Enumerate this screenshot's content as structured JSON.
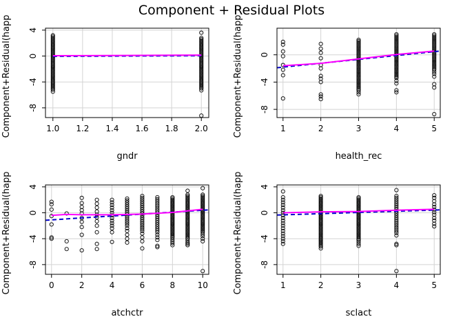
{
  "title": "Component + Residual Plots",
  "colors": {
    "points": "#000000",
    "linear_fit": "#0000cd",
    "smooth_fit": "#ff00ff",
    "grid": "#d3d3d3"
  },
  "chart_data": [
    {
      "type": "scatter",
      "xlabel": "gndr",
      "ylabel": "Component+Residual(happ",
      "xlim": [
        0.95,
        2.05
      ],
      "ylim": [
        -9.5,
        4.3
      ],
      "xticks": [
        1.0,
        1.2,
        1.4,
        1.6,
        1.8,
        2.0
      ],
      "xtick_labels": [
        "1.0",
        "1.2",
        "1.4",
        "1.6",
        "1.8",
        "2.0"
      ],
      "yticks": [
        -8,
        -4,
        0,
        4
      ],
      "ytick_labels": [
        "-8",
        "-4",
        "0",
        "4"
      ],
      "grid": true,
      "points_by_x": [
        {
          "x": 1.0,
          "y": [
            3.2,
            3.0,
            2.8,
            2.6,
            2.4,
            2.2,
            2.0,
            1.8,
            1.6,
            1.4,
            1.2,
            1.0,
            0.8,
            0.6,
            0.4,
            0.2,
            0.0,
            -0.2,
            -0.4,
            -0.6,
            -0.8,
            -1.0,
            -1.2,
            -1.4,
            -1.6,
            -1.8,
            -2.0,
            -2.2,
            -2.4,
            -2.6,
            -2.8,
            -3.0,
            -3.2,
            -3.4,
            -3.6,
            -3.8,
            -4.0,
            -4.2,
            -4.4,
            -4.6,
            -4.8,
            -5.0,
            -5.2,
            -5.5
          ]
        },
        {
          "x": 2.0,
          "y": [
            3.6,
            2.8,
            2.6,
            2.4,
            2.2,
            2.0,
            1.8,
            1.6,
            1.4,
            1.2,
            1.0,
            0.8,
            0.6,
            0.4,
            0.2,
            0.0,
            -0.2,
            -0.4,
            -0.6,
            -0.8,
            -1.0,
            -1.2,
            -1.4,
            -1.6,
            -1.8,
            -2.0,
            -2.2,
            -2.4,
            -2.6,
            -2.8,
            -3.0,
            -3.2,
            -3.4,
            -3.6,
            -3.8,
            -4.0,
            -4.2,
            -4.4,
            -4.6,
            -4.8,
            -5.0,
            -5.3,
            -9.2
          ]
        }
      ],
      "linear_fit": [
        [
          1.0,
          -0.05
        ],
        [
          2.0,
          0.05
        ]
      ],
      "smooth_fit": [
        [
          1.0,
          0.05
        ],
        [
          1.5,
          0.1
        ],
        [
          2.0,
          0.15
        ]
      ]
    },
    {
      "type": "scatter",
      "xlabel": "health_rec",
      "ylabel": "Component+Residual(happ",
      "xlim": [
        0.84,
        5.16
      ],
      "ylim": [
        -9.2,
        3.9
      ],
      "xticks": [
        1,
        2,
        3,
        4,
        5
      ],
      "xtick_labels": [
        "1",
        "2",
        "3",
        "4",
        "5"
      ],
      "yticks": [
        -8,
        -4,
        0
      ],
      "ytick_labels": [
        "-8",
        "-4",
        "0"
      ],
      "grid": true,
      "points_by_x": [
        {
          "x": 1,
          "y": [
            1.9,
            1.5,
            0.5,
            -0.2,
            -1.5,
            -2.2,
            -3.0,
            -6.4
          ]
        },
        {
          "x": 2,
          "y": [
            1.6,
            0.9,
            0.3,
            -0.5,
            -1.5,
            -2.0,
            -3.1,
            -3.5,
            -4.0,
            -5.8,
            -6.1,
            -6.5
          ]
        },
        {
          "x": 3,
          "y": [
            2.2,
            2.0,
            1.8,
            1.6,
            1.4,
            1.2,
            1.0,
            0.8,
            0.6,
            0.4,
            0.2,
            0.0,
            -0.2,
            -0.4,
            -0.6,
            -0.8,
            -1.0,
            -1.2,
            -1.4,
            -1.6,
            -1.8,
            -2.0,
            -2.2,
            -2.4,
            -2.6,
            -2.8,
            -3.0,
            -3.2,
            -3.4,
            -3.6,
            -3.8,
            -4.0,
            -4.2,
            -4.4,
            -4.6,
            -4.8,
            -5.0,
            -5.2,
            -5.5,
            -5.8
          ]
        },
        {
          "x": 4,
          "y": [
            3.0,
            2.8,
            2.6,
            2.4,
            2.2,
            2.0,
            1.8,
            1.6,
            1.4,
            1.2,
            1.0,
            0.8,
            0.6,
            0.4,
            0.2,
            0.0,
            -0.2,
            -0.4,
            -0.6,
            -0.8,
            -1.0,
            -1.2,
            -1.4,
            -1.6,
            -1.8,
            -2.0,
            -2.2,
            -2.4,
            -2.6,
            -2.8,
            -3.0,
            -3.2,
            -3.4,
            -3.8,
            -4.2,
            -5.2,
            -5.5
          ]
        },
        {
          "x": 5,
          "y": [
            3.0,
            2.8,
            2.6,
            2.4,
            2.2,
            2.0,
            1.8,
            1.6,
            1.4,
            1.2,
            1.0,
            0.8,
            0.6,
            0.4,
            0.2,
            0.0,
            -0.2,
            -0.4,
            -0.6,
            -0.8,
            -1.0,
            -1.2,
            -1.4,
            -1.6,
            -1.8,
            -2.0,
            -2.2,
            -2.5,
            -2.8,
            -3.2,
            -4.3,
            -4.8,
            -8.7
          ]
        }
      ],
      "linear_fit": [
        [
          0.84,
          -1.9
        ],
        [
          5.16,
          0.55
        ]
      ],
      "smooth_fit": [
        [
          1.0,
          -1.6
        ],
        [
          2.0,
          -1.25
        ],
        [
          3.0,
          -0.6
        ],
        [
          4.0,
          0.05
        ],
        [
          5.0,
          0.55
        ]
      ]
    },
    {
      "type": "scatter",
      "xlabel": "atchctr",
      "ylabel": "Component+Residual(happ",
      "xlim": [
        -0.4,
        10.4
      ],
      "ylim": [
        -9.5,
        4.3
      ],
      "xticks": [
        0,
        2,
        4,
        6,
        8,
        10
      ],
      "xtick_labels": [
        "0",
        "2",
        "4",
        "6",
        "8",
        "10"
      ],
      "yticks": [
        -8,
        -4,
        0,
        4
      ],
      "ytick_labels": [
        "-8",
        "-4",
        "0",
        "4"
      ],
      "grid": true,
      "points_by_x": [
        {
          "x": 0,
          "y": [
            1.7,
            1.3,
            0.5,
            -0.5,
            -1.8,
            -3.8,
            -4.0
          ]
        },
        {
          "x": 1,
          "y": [
            -0.1,
            -4.4,
            -5.6
          ]
        },
        {
          "x": 2,
          "y": [
            2.3,
            1.5,
            0.9,
            0.4,
            -0.1,
            -0.8,
            -1.4,
            -2.2,
            -3.4,
            -5.8
          ]
        },
        {
          "x": 3,
          "y": [
            2.0,
            1.4,
            0.8,
            0.2,
            -0.3,
            -0.7,
            -1.3,
            -2.0,
            -3.0,
            -4.8,
            -5.6
          ]
        },
        {
          "x": 4,
          "y": [
            2.0,
            1.6,
            1.2,
            0.8,
            0.4,
            0.0,
            -0.4,
            -0.8,
            -1.2,
            -1.6,
            -2.0,
            -2.4,
            -3.0,
            -4.5
          ]
        },
        {
          "x": 5,
          "y": [
            2.2,
            1.9,
            1.6,
            1.3,
            1.0,
            0.7,
            0.4,
            0.1,
            -0.2,
            -0.5,
            -0.8,
            -1.1,
            -1.4,
            -1.7,
            -2.0,
            -2.4,
            -2.8,
            -3.4,
            -4.0,
            -4.6
          ]
        },
        {
          "x": 6,
          "y": [
            2.6,
            2.3,
            2.0,
            1.7,
            1.4,
            1.1,
            0.8,
            0.5,
            0.2,
            -0.1,
            -0.4,
            -0.7,
            -1.0,
            -1.3,
            -1.6,
            -1.9,
            -2.2,
            -2.5,
            -2.8,
            -3.2,
            -3.8,
            -4.4,
            -5.5
          ]
        },
        {
          "x": 7,
          "y": [
            2.4,
            2.1,
            1.8,
            1.5,
            1.2,
            0.9,
            0.6,
            0.3,
            0.0,
            -0.3,
            -0.6,
            -0.9,
            -1.2,
            -1.5,
            -1.8,
            -2.1,
            -2.4,
            -2.7,
            -3.0,
            -3.4,
            -3.8,
            -4.2,
            -5.1,
            -5.3
          ]
        },
        {
          "x": 8,
          "y": [
            2.4,
            2.2,
            2.0,
            1.8,
            1.6,
            1.4,
            1.2,
            1.0,
            0.8,
            0.6,
            0.4,
            0.2,
            0.0,
            -0.2,
            -0.4,
            -0.6,
            -0.8,
            -1.0,
            -1.2,
            -1.4,
            -1.6,
            -1.8,
            -2.0,
            -2.2,
            -2.4,
            -2.6,
            -2.8,
            -3.0,
            -3.2,
            -3.4,
            -3.6,
            -3.8,
            -4.1,
            -4.4,
            -4.7,
            -5.0
          ]
        },
        {
          "x": 9,
          "y": [
            3.4,
            2.8,
            2.6,
            2.4,
            2.2,
            2.0,
            1.8,
            1.6,
            1.4,
            1.2,
            1.0,
            0.8,
            0.6,
            0.4,
            0.2,
            0.0,
            -0.2,
            -0.4,
            -0.6,
            -0.8,
            -1.0,
            -1.2,
            -1.4,
            -1.6,
            -1.8,
            -2.0,
            -2.2,
            -2.4,
            -2.6,
            -2.8,
            -3.0,
            -3.2,
            -3.4,
            -3.6,
            -3.8,
            -4.0,
            -4.3,
            -4.6,
            -4.8,
            -5.0
          ]
        },
        {
          "x": 10,
          "y": [
            3.8,
            2.8,
            2.6,
            2.4,
            2.2,
            2.0,
            1.8,
            1.6,
            1.4,
            1.2,
            1.0,
            0.8,
            0.6,
            0.4,
            0.2,
            0.0,
            -0.2,
            -0.4,
            -0.6,
            -0.8,
            -1.0,
            -1.2,
            -1.4,
            -1.6,
            -1.8,
            -2.0,
            -2.2,
            -2.4,
            -2.6,
            -2.8,
            -3.0,
            -3.3,
            -3.6,
            -4.0,
            -4.4,
            -9.0
          ]
        }
      ],
      "linear_fit": [
        [
          -0.4,
          -1.15
        ],
        [
          10.4,
          0.45
        ]
      ],
      "smooth_fit": [
        [
          0,
          -0.4
        ],
        [
          1,
          -0.25
        ],
        [
          2,
          -0.3
        ],
        [
          4,
          -0.3
        ],
        [
          6,
          -0.2
        ],
        [
          8,
          0.05
        ],
        [
          10,
          0.55
        ]
      ]
    },
    {
      "type": "scatter",
      "xlabel": "sclact",
      "ylabel": "Component+Residual(happ",
      "xlim": [
        0.84,
        5.16
      ],
      "ylim": [
        -9.5,
        4.3
      ],
      "xticks": [
        1,
        2,
        3,
        4,
        5
      ],
      "xtick_labels": [
        "1",
        "2",
        "3",
        "4",
        "5"
      ],
      "yticks": [
        -8,
        -4,
        0,
        4
      ],
      "ytick_labels": [
        "-8",
        "-4",
        "0",
        "4"
      ],
      "grid": true,
      "points_by_x": [
        {
          "x": 1,
          "y": [
            3.3,
            2.4,
            2.0,
            1.6,
            1.2,
            0.8,
            0.4,
            0.0,
            -0.4,
            -0.8,
            -1.2,
            -1.6,
            -2.0,
            -2.4,
            -2.8,
            -3.2,
            -3.6,
            -4.0,
            -4.4,
            -4.8
          ]
        },
        {
          "x": 2,
          "y": [
            2.6,
            2.4,
            2.2,
            2.0,
            1.8,
            1.6,
            1.4,
            1.2,
            1.0,
            0.8,
            0.6,
            0.4,
            0.2,
            0.0,
            -0.2,
            -0.4,
            -0.6,
            -0.8,
            -1.0,
            -1.2,
            -1.4,
            -1.6,
            -1.8,
            -2.0,
            -2.2,
            -2.4,
            -2.6,
            -2.8,
            -3.0,
            -3.2,
            -3.4,
            -3.6,
            -3.8,
            -4.0,
            -4.2,
            -4.4,
            -4.6,
            -4.8,
            -5.0,
            -5.2,
            -5.5
          ]
        },
        {
          "x": 3,
          "y": [
            2.4,
            2.2,
            2.0,
            1.8,
            1.6,
            1.4,
            1.2,
            1.0,
            0.8,
            0.6,
            0.4,
            0.2,
            0.0,
            -0.2,
            -0.4,
            -0.6,
            -0.8,
            -1.0,
            -1.2,
            -1.4,
            -1.6,
            -1.8,
            -2.0,
            -2.2,
            -2.4,
            -2.6,
            -2.8,
            -3.0,
            -3.2,
            -3.4,
            -3.6,
            -3.8,
            -4.0,
            -4.2,
            -4.5,
            -4.8,
            -5.1
          ]
        },
        {
          "x": 4,
          "y": [
            3.5,
            2.6,
            2.3,
            2.0,
            1.7,
            1.4,
            1.1,
            0.8,
            0.5,
            0.2,
            -0.1,
            -0.4,
            -0.7,
            -1.0,
            -1.3,
            -1.6,
            -1.9,
            -2.2,
            -2.5,
            -2.8,
            -3.1,
            -3.5,
            -4.8,
            -5.0,
            -9.0
          ]
        },
        {
          "x": 5,
          "y": [
            2.7,
            2.3,
            1.8,
            1.3,
            0.9,
            0.5,
            0.1,
            -0.3,
            -0.8,
            -1.2,
            -1.7,
            -2.1
          ]
        }
      ],
      "linear_fit": [
        [
          0.84,
          -0.35
        ],
        [
          5.16,
          0.45
        ]
      ],
      "smooth_fit": [
        [
          1,
          0.0
        ],
        [
          2,
          0.15
        ],
        [
          3,
          0.2
        ],
        [
          4,
          0.4
        ],
        [
          5,
          0.55
        ]
      ]
    }
  ]
}
